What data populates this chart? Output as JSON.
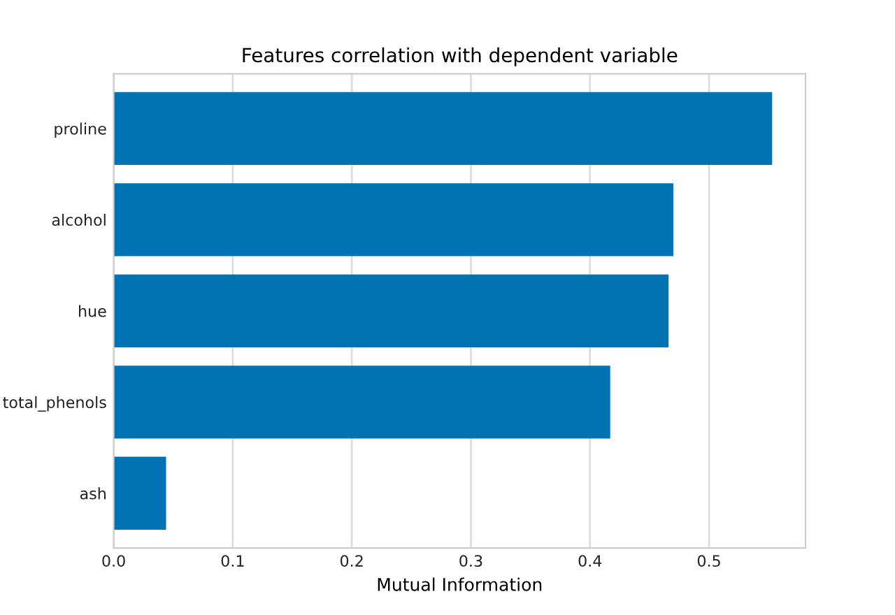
{
  "chart_data": {
    "type": "bar",
    "orientation": "horizontal",
    "title": "Features correlation with dependent variable",
    "xlabel": "Mutual Information",
    "categories": [
      "proline",
      "alcohol",
      "hue",
      "total_phenols",
      "ash"
    ],
    "values": [
      0.553,
      0.47,
      0.466,
      0.417,
      0.044
    ],
    "color": "#0173b2",
    "xlim": [
      0,
      0.581
    ],
    "xticks": [
      {
        "value": 0,
        "label": "0.0"
      },
      0.1,
      0.2,
      0.3,
      0.4,
      0.5
    ],
    "grid": "x"
  }
}
